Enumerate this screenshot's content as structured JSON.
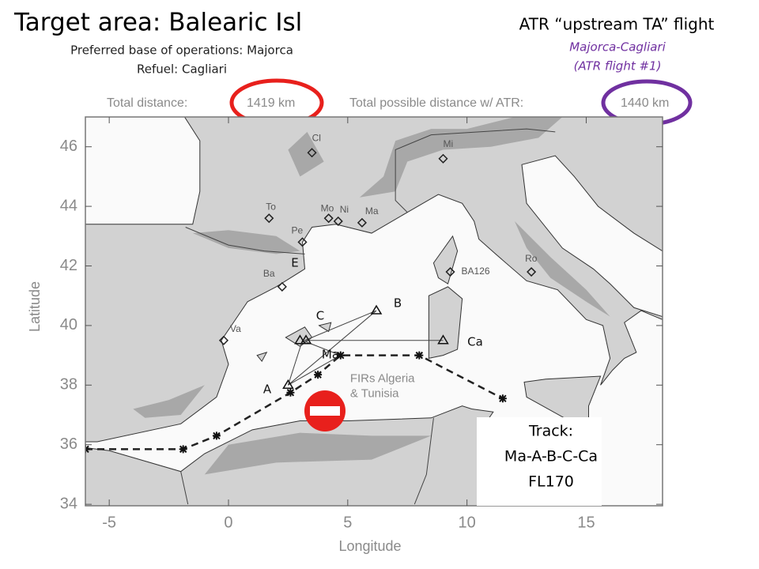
{
  "header": {
    "title": "Target area: Balearic Isl",
    "subtitle_lines": [
      "Preferred base of operations: Majorca",
      "Refuel: Cagliari"
    ]
  },
  "flight_info": {
    "title": "ATR “upstream TA” flight",
    "route": "Majorca-Cagliari",
    "flight": "(ATR flight #1)"
  },
  "map": {
    "distance_label": "Total distance:",
    "distance_value": "1419 km",
    "possible_label": "Total possible distance w/ ATR:",
    "possible_value": "1440 km",
    "x_label": "Longitude",
    "y_label": "Latitude",
    "xlim": [
      -6,
      18.2
    ],
    "ylim": [
      33.95,
      47
    ],
    "xticks": [
      -5,
      0,
      5,
      10,
      15
    ],
    "yticks": [
      34,
      36,
      38,
      40,
      42,
      44,
      46
    ],
    "stations": [
      "Cl",
      "Mi",
      "To",
      "Mo",
      "Ni",
      "Ma",
      "Pe",
      "Ba",
      "Va",
      "Ro",
      "BA126"
    ],
    "waypoints": [
      "E",
      "B",
      "C",
      "Ma",
      "A",
      "Ca"
    ],
    "fir_label": [
      "FIRs Algeria",
      "& Tunisia"
    ]
  },
  "track_box": {
    "lines": [
      "Track:",
      "Ma-A-B-C-Ca",
      "FL170"
    ]
  }
}
